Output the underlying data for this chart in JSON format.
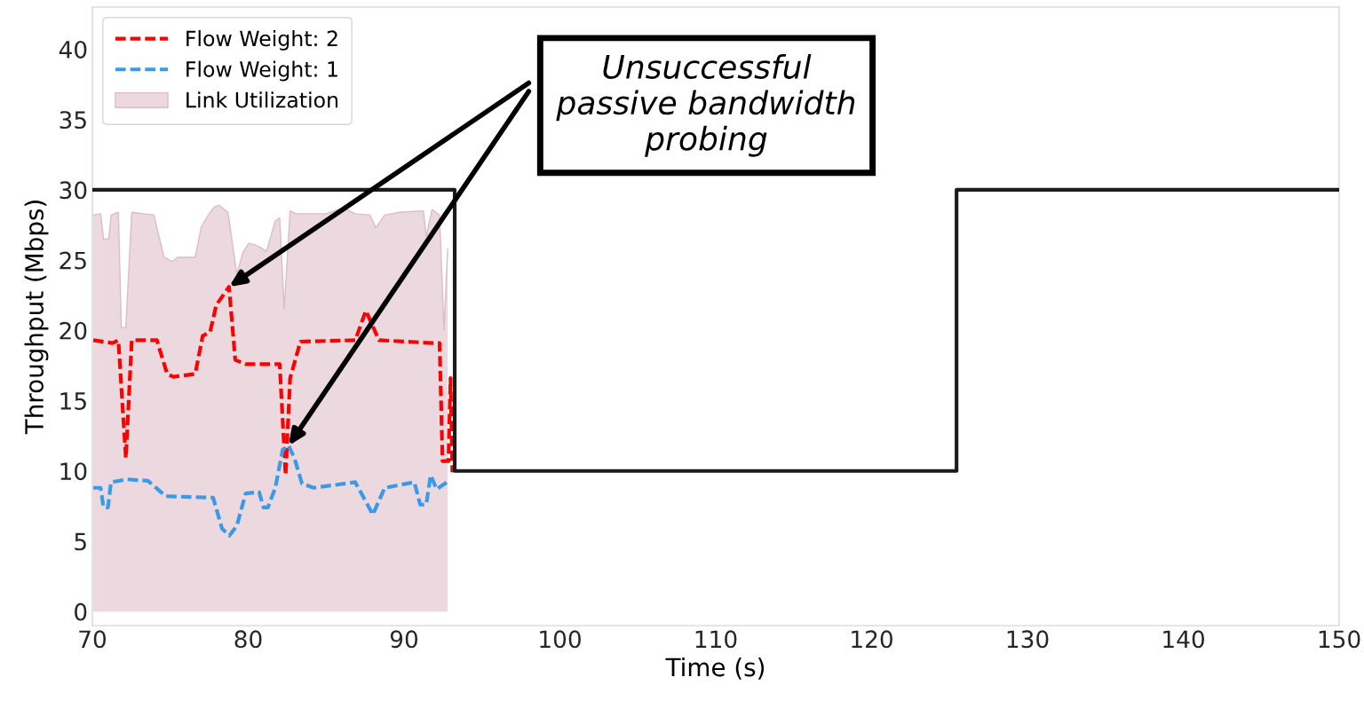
{
  "chart_data": {
    "type": "line",
    "xlabel": "Time (s)",
    "ylabel": "Throughput (Mbps)",
    "xlim": [
      70,
      150
    ],
    "ylim": [
      -1,
      43
    ],
    "xticks": [
      70,
      80,
      90,
      100,
      110,
      120,
      130,
      140,
      150
    ],
    "yticks": [
      0,
      5,
      10,
      15,
      20,
      25,
      30,
      35,
      40
    ],
    "grid": false,
    "legend": "top left",
    "marker": "none",
    "series": [
      {
        "name": "Flow Weight: 2",
        "color": "#ff0000",
        "line_style": "dashed",
        "x": [
          70.06,
          71.29,
          71.67,
          72.15,
          72.53,
          74.14,
          74.8,
          75.19,
          76.6,
          77.08,
          77.56,
          77.95,
          78.77,
          79.17,
          79.84,
          81.55,
          82.02,
          82.4,
          82.69,
          83.35,
          86.87,
          87.55,
          88.39,
          91.8,
          92.28,
          92.47,
          92.85,
          92.98,
          93.1
        ],
        "values": [
          19.3,
          19.1,
          19.3,
          10.9,
          19.3,
          19.3,
          16.9,
          16.7,
          16.9,
          19.6,
          19.9,
          21.8,
          23.1,
          17.9,
          17.6,
          17.6,
          17.6,
          9.7,
          16.6,
          19.2,
          19.3,
          21.4,
          19.3,
          19.1,
          19.1,
          10.7,
          10.7,
          16.6,
          9.9
        ]
      },
      {
        "name": "Flow Weight: 1",
        "color": "#3a9ae8",
        "line_style": "dashed",
        "x": [
          70.06,
          70.53,
          70.72,
          71.0,
          71.2,
          72.24,
          73.57,
          74.71,
          77.75,
          78.32,
          78.8,
          79.27,
          79.84,
          80.7,
          80.98,
          81.26,
          81.74,
          82.21,
          82.59,
          82.97,
          83.45,
          84.2,
          86.87,
          88.0,
          88.76,
          90.66,
          91.04,
          91.42,
          91.71,
          92.09,
          92.75
        ],
        "values": [
          8.8,
          8.8,
          7.4,
          7.4,
          9.2,
          9.4,
          9.3,
          8.2,
          8.1,
          5.9,
          5.4,
          6.1,
          8.4,
          8.5,
          7.4,
          7.4,
          8.8,
          11.5,
          11.8,
          10.9,
          9.1,
          8.8,
          9.2,
          6.9,
          8.8,
          9.2,
          7.6,
          7.6,
          9.7,
          8.7,
          9.2
        ]
      },
      {
        "type": "area",
        "name": "Link Utilization",
        "color": "#ecd8df",
        "x": [
          70.06,
          70.53,
          70.72,
          71.05,
          71.2,
          71.67,
          71.86,
          72.15,
          72.53,
          73.95,
          74.6,
          75.1,
          75.47,
          76.6,
          77.0,
          77.56,
          77.85,
          78.13,
          78.7,
          79.27,
          79.65,
          80.03,
          80.4,
          80.79,
          81.17,
          81.74,
          82.02,
          82.31,
          82.69,
          83.07,
          84.97,
          86.1,
          86.87,
          87.82,
          88.19,
          88.76,
          89.7,
          91.24,
          91.42,
          91.8,
          92.28,
          92.56,
          92.8
        ],
        "values": [
          28.2,
          28.3,
          26.5,
          26.5,
          28.2,
          28.4,
          20.2,
          20.2,
          28.4,
          28.2,
          25.2,
          24.9,
          25.2,
          25.2,
          27.4,
          28.4,
          28.8,
          28.9,
          28.4,
          24.0,
          25.5,
          26.2,
          26.1,
          25.9,
          25.6,
          27.8,
          28.0,
          21.5,
          28.5,
          28.3,
          28.3,
          28.7,
          28.3,
          28.2,
          27.3,
          28.2,
          28.4,
          28.5,
          26.7,
          28.6,
          28.2,
          20.0,
          25.8
        ]
      },
      {
        "color": "#1c1c1c",
        "line_style": "solid",
        "x": [
          70,
          93.25,
          93.25,
          125.45,
          125.45,
          150
        ],
        "values": [
          30,
          30,
          10,
          10,
          30,
          30
        ]
      }
    ],
    "annotations": [
      {
        "text": "Unsuccessful\npassive bandwidth\nprobing",
        "x": 78.77,
        "y": 23.1
      }
    ]
  }
}
